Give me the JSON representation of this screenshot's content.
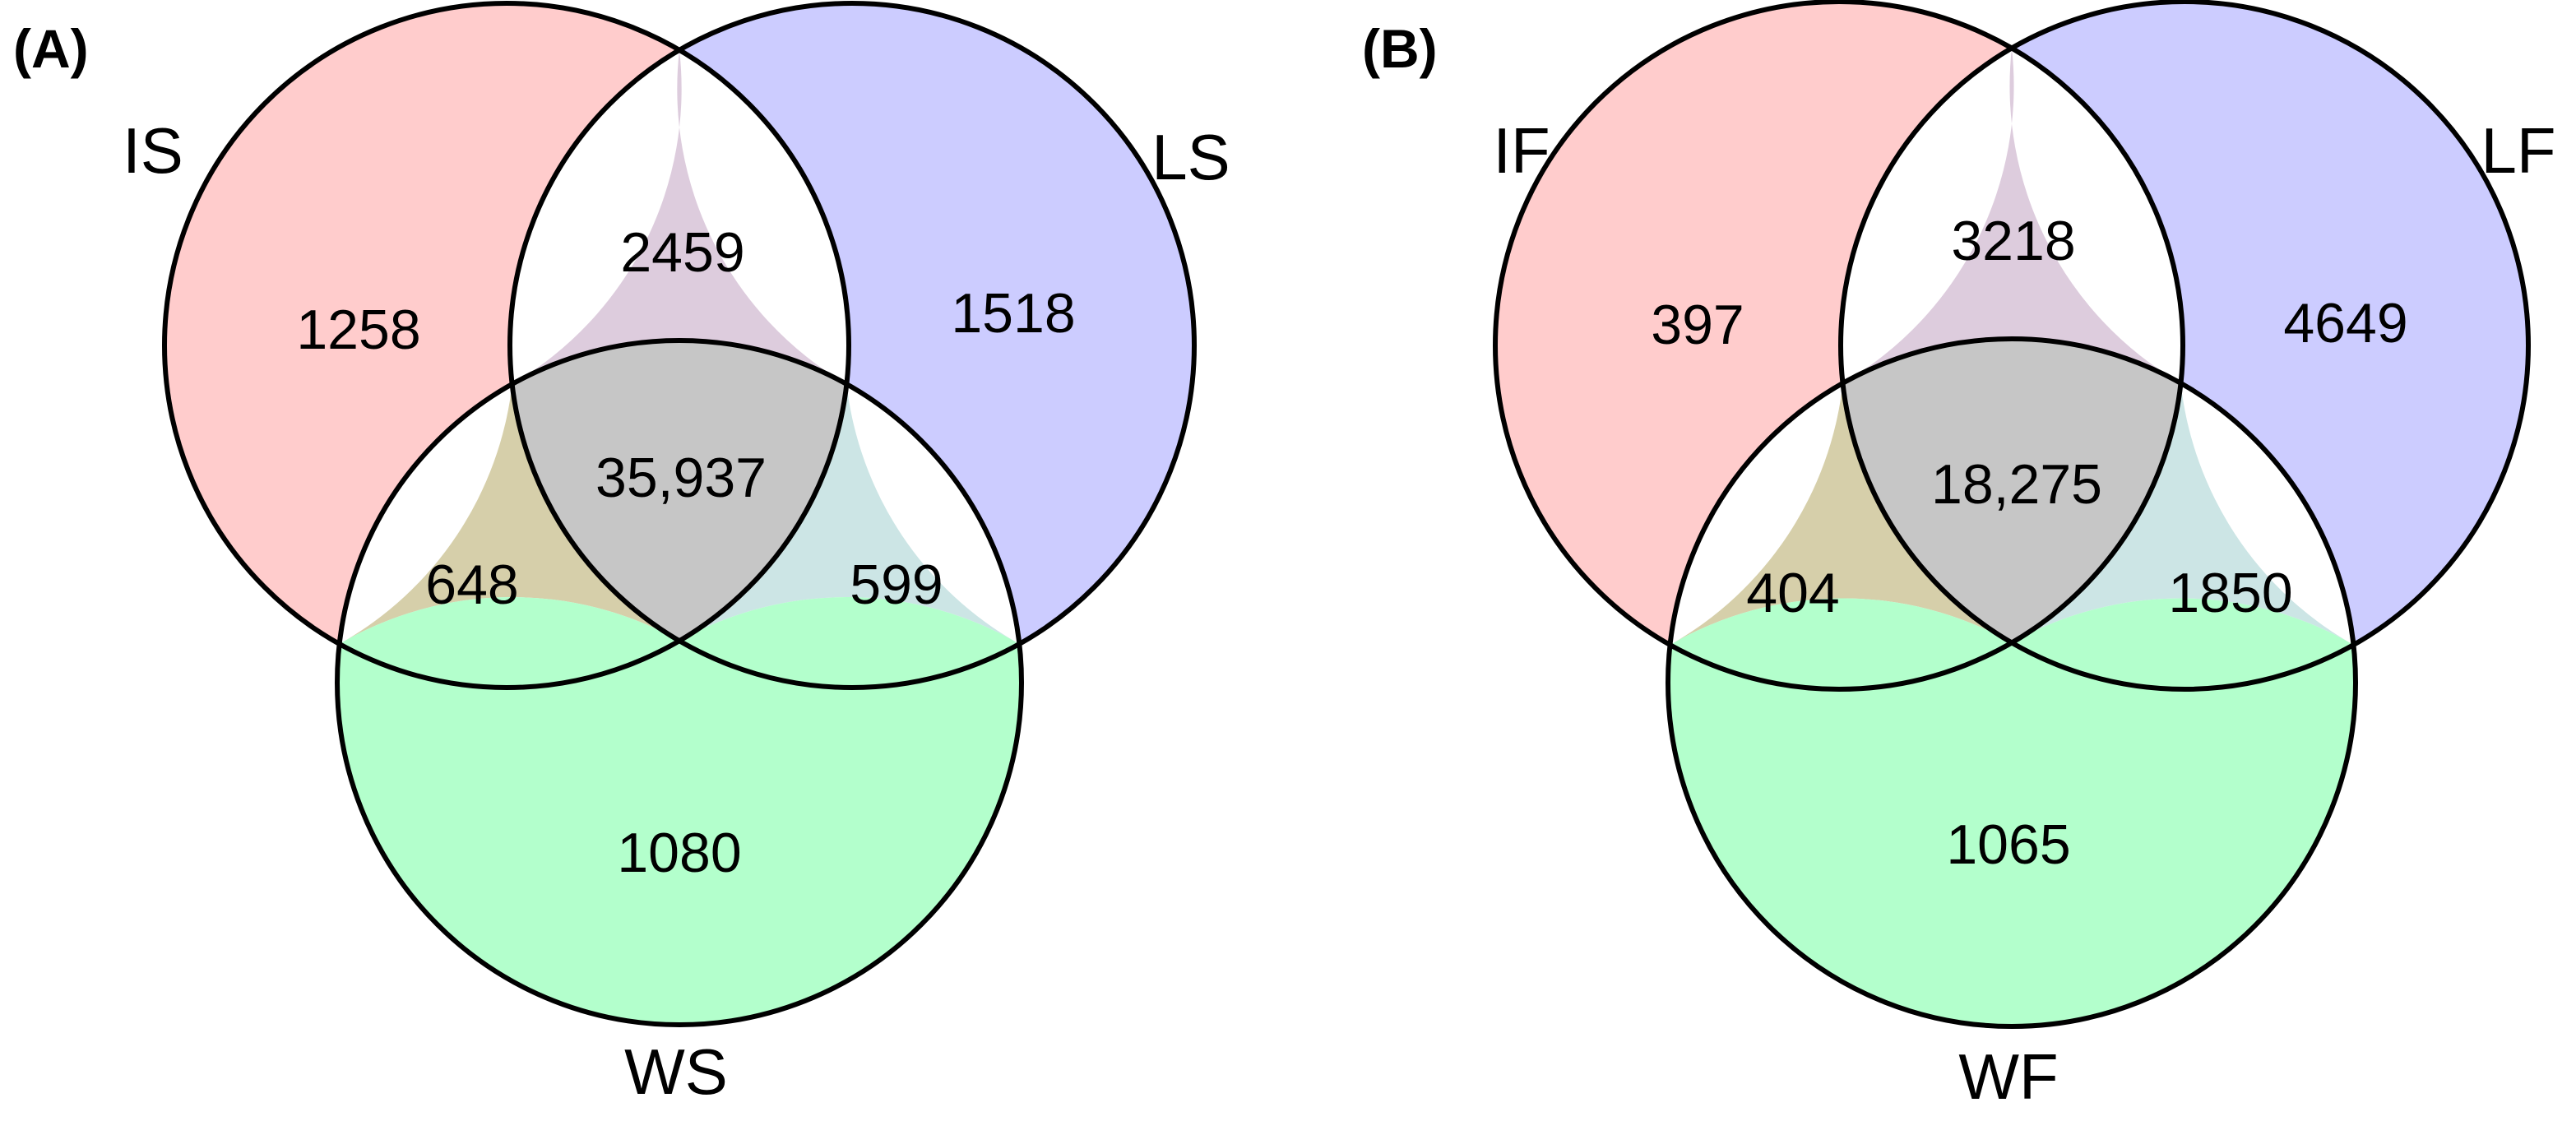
{
  "panels": [
    {
      "label": "(A)",
      "sets": {
        "a": "IS",
        "b": "LS",
        "c": "WS"
      },
      "counts": {
        "a_only": "1258",
        "b_only": "1518",
        "c_only": "1080",
        "ab": "2459",
        "ac": "648",
        "bc": "599",
        "abc": "35,937"
      }
    },
    {
      "label": "(B)",
      "sets": {
        "a": "IF",
        "b": "LF",
        "c": "WF"
      },
      "counts": {
        "a_only": "397",
        "b_only": "4649",
        "c_only": "1065",
        "ab": "3218",
        "ac": "404",
        "bc": "1850",
        "abc": "18,275"
      }
    }
  ],
  "colors": {
    "a_only": "#FFCCCC",
    "b_only": "#CCCCFF",
    "c_only": "#B3FFCC",
    "ab": "#DDCCDD",
    "ac": "#D6CFAA",
    "bc": "#CCE5E5",
    "abc": "#C6C6C6",
    "outline": "#000000"
  }
}
